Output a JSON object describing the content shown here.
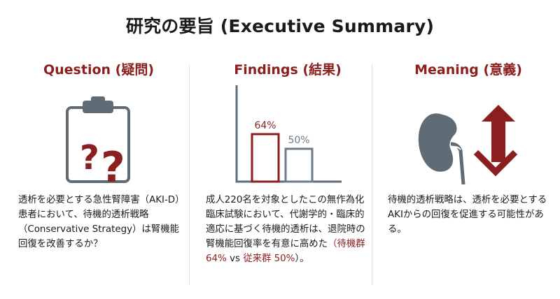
{
  "title": "研究の要旨 (Executive Summary)",
  "columns": [
    {
      "heading": "Question (疑問)",
      "icon": "clipboard-question-icon",
      "body": "透析を必要とする急性腎障害（AKI-D）患者において、待機的透析戦略（Conservative Strategy）は腎機能回復を改善するか？"
    },
    {
      "heading": "Findings (結果)",
      "icon": "bar-chart-icon",
      "body_plain": "成人220名を対象としたこの無作為化臨床試験において、代謝学的・臨床的適応に基づく待機的透析は、退院時の腎機能回復率を有意に高めた",
      "body_highlight": "（待機群 64%",
      "body_mid": " vs ",
      "body_highlight2": "従来群 50%",
      "body_end": "）。"
    },
    {
      "heading": "Meaning (意義)",
      "icon": "kidney-arrows-icon",
      "body": "待機的透析戦略は、透析を必要とするAKIからの回復を促進する可能性がある。"
    }
  ],
  "chart_data": {
    "type": "bar",
    "categories": [
      "",
      ""
    ],
    "values": [
      64,
      50
    ],
    "labels": [
      "64%",
      "50%"
    ],
    "ylim": [
      0,
      100
    ],
    "colors": [
      "#8b1e1e",
      "#6f7b86"
    ]
  },
  "colors": {
    "accent": "#8b1e1e",
    "gray": "#6f7b86"
  }
}
